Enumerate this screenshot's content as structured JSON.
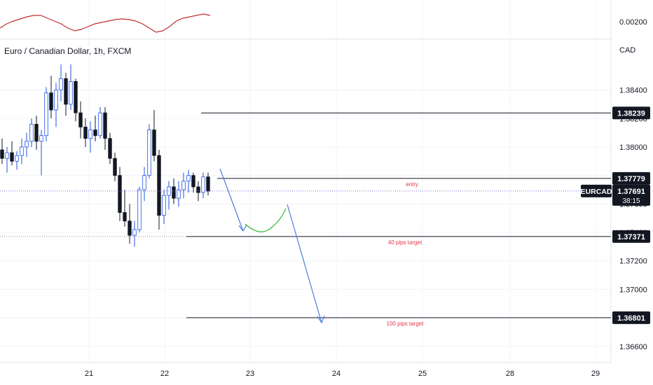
{
  "symbol_title": "Euro / Canadian Dollar, 1h, FXCM",
  "currency": "CAD",
  "indicator_value": "0.00200",
  "colors": {
    "candle_up": "#ffffff",
    "candle_down": "#131722",
    "candle_outline_up": "#1e53e5",
    "wick": "#131722",
    "drawing_blue": "#4a7ee0",
    "curve_green": "#2eb82e",
    "indicator_red": "#c22e2e",
    "annotation_red": "#e0364b",
    "grid": "#f0f3fa"
  },
  "chart_data": {
    "type": "candlestick",
    "instrument": "EURCAD",
    "timeframe": "1h",
    "x_tick_labels": [
      "21",
      "22",
      "23",
      "24",
      "25",
      "28",
      "29"
    ],
    "y_tick_labels": [
      "1.38400",
      "1.38200",
      "1.38000",
      "1.37800",
      "1.37600",
      "1.37400",
      "1.37200",
      "1.37000",
      "1.36800",
      "1.36600"
    ],
    "ylim": [
      1.3653,
      1.3858
    ],
    "grid": true,
    "levels": [
      {
        "value": 1.38239,
        "label": "1.38239",
        "annotation": ""
      },
      {
        "value": 1.37779,
        "label": "1.37779",
        "annotation": "entry"
      },
      {
        "value": 1.37371,
        "label": "1.37371",
        "annotation": "40 pips target"
      },
      {
        "value": 1.36801,
        "label": "1.36801",
        "annotation": "100 pips target"
      }
    ],
    "current_price": {
      "label": "EURCAD",
      "value": "1.37691",
      "value_num": 1.37691,
      "countdown": "38:15"
    },
    "candles": [
      [
        1.3798,
        1.3806,
        1.3788,
        1.3792
      ],
      [
        1.3792,
        1.38,
        1.3782,
        1.3796
      ],
      [
        1.3796,
        1.3804,
        1.3787,
        1.379
      ],
      [
        1.379,
        1.3797,
        1.3784,
        1.3794
      ],
      [
        1.3794,
        1.3806,
        1.3788,
        1.38
      ],
      [
        1.38,
        1.381,
        1.3793,
        1.3804
      ],
      [
        1.3804,
        1.382,
        1.38,
        1.3816
      ],
      [
        1.3816,
        1.3822,
        1.3798,
        1.3804
      ],
      [
        1.3804,
        1.3812,
        1.378,
        1.3808
      ],
      [
        1.3808,
        1.3842,
        1.3804,
        1.3838
      ],
      [
        1.3838,
        1.385,
        1.382,
        1.3826
      ],
      [
        1.3826,
        1.3845,
        1.3814,
        1.384
      ],
      [
        1.384,
        1.3858,
        1.3832,
        1.3848
      ],
      [
        1.3848,
        1.3852,
        1.3822,
        1.383
      ],
      [
        1.383,
        1.3858,
        1.3826,
        1.3846
      ],
      [
        1.3846,
        1.3848,
        1.3818,
        1.3824
      ],
      [
        1.3824,
        1.3832,
        1.3806,
        1.3814
      ],
      [
        1.3814,
        1.382,
        1.38,
        1.3806
      ],
      [
        1.3806,
        1.3818,
        1.3796,
        1.3812
      ],
      [
        1.3812,
        1.3822,
        1.3804,
        1.3808
      ],
      [
        1.3808,
        1.3828,
        1.3806,
        1.3824
      ],
      [
        1.3824,
        1.3828,
        1.3798,
        1.3806
      ],
      [
        1.3806,
        1.381,
        1.3788,
        1.3792
      ],
      [
        1.3792,
        1.3796,
        1.3776,
        1.378
      ],
      [
        1.378,
        1.3786,
        1.3748,
        1.3754
      ],
      [
        1.3754,
        1.377,
        1.3744,
        1.3748
      ],
      [
        1.3748,
        1.376,
        1.3732,
        1.3738
      ],
      [
        1.3738,
        1.3748,
        1.373,
        1.3742
      ],
      [
        1.3742,
        1.3772,
        1.374,
        1.377
      ],
      [
        1.377,
        1.3786,
        1.3762,
        1.378
      ],
      [
        1.378,
        1.3816,
        1.3778,
        1.3812
      ],
      [
        1.3812,
        1.3826,
        1.379,
        1.3794
      ],
      [
        1.3794,
        1.3798,
        1.3742,
        1.3752
      ],
      [
        1.3752,
        1.377,
        1.3746,
        1.3766
      ],
      [
        1.3766,
        1.3776,
        1.3756,
        1.3772
      ],
      [
        1.3772,
        1.3778,
        1.376,
        1.3764
      ],
      [
        1.3764,
        1.3776,
        1.3758,
        1.377
      ],
      [
        1.377,
        1.3782,
        1.3764,
        1.3776
      ],
      [
        1.3776,
        1.3784,
        1.3768,
        1.378
      ],
      [
        1.378,
        1.3782,
        1.3768,
        1.3772
      ],
      [
        1.3772,
        1.3776,
        1.3762,
        1.3768
      ],
      [
        1.3768,
        1.3782,
        1.3764,
        1.3779
      ],
      [
        1.3779,
        1.3782,
        1.3766,
        1.3769
      ]
    ],
    "indicator_series": [
      30,
      24,
      20,
      17,
      14,
      12,
      12,
      16,
      20,
      24,
      30,
      34,
      32,
      28,
      24,
      22,
      20,
      18,
      17,
      18,
      20,
      24,
      30,
      36,
      34,
      28,
      20,
      16,
      14,
      12,
      10,
      12
    ]
  }
}
